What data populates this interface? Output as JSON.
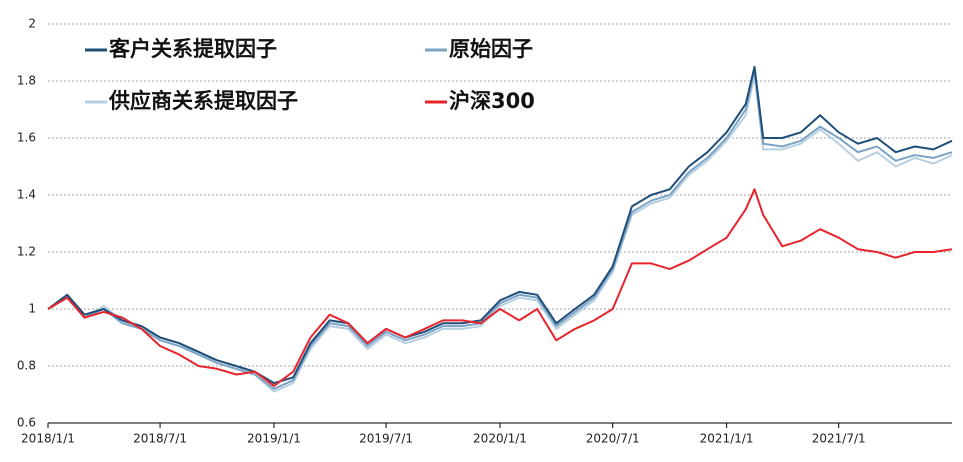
{
  "chart_data": {
    "type": "line",
    "x": [
      "2018/1/1",
      "2018/2/1",
      "2018/3/1",
      "2018/4/1",
      "2018/5/1",
      "2018/6/1",
      "2018/7/1",
      "2018/8/1",
      "2018/9/1",
      "2018/10/1",
      "2018/11/1",
      "2018/12/1",
      "2019/1/1",
      "2019/2/1",
      "2019/3/1",
      "2019/4/1",
      "2019/5/1",
      "2019/6/1",
      "2019/7/1",
      "2019/8/1",
      "2019/9/1",
      "2019/10/1",
      "2019/11/1",
      "2019/12/1",
      "2020/1/1",
      "2020/2/1",
      "2020/3/1",
      "2020/4/1",
      "2020/5/1",
      "2020/6/1",
      "2020/7/1",
      "2020/8/1",
      "2020/9/1",
      "2020/10/1",
      "2020/11/1",
      "2020/12/1",
      "2021/1/1",
      "2021/2/1",
      "2021/2/15",
      "2021/3/1",
      "2021/4/1",
      "2021/5/1",
      "2021/6/1",
      "2021/7/1",
      "2021/8/1",
      "2021/9/1",
      "2021/10/1",
      "2021/11/1",
      "2021/12/1",
      "2021/12/31"
    ],
    "series": [
      {
        "name": "客户关系提取因子",
        "color": "#1f4e79",
        "values": [
          1.0,
          1.05,
          0.98,
          1.0,
          0.96,
          0.94,
          0.9,
          0.88,
          0.85,
          0.82,
          0.8,
          0.78,
          0.74,
          0.76,
          0.88,
          0.96,
          0.95,
          0.88,
          0.93,
          0.9,
          0.92,
          0.95,
          0.95,
          0.96,
          1.03,
          1.06,
          1.05,
          0.95,
          1.0,
          1.05,
          1.15,
          1.36,
          1.4,
          1.42,
          1.5,
          1.55,
          1.62,
          1.72,
          1.85,
          1.6,
          1.6,
          1.62,
          1.68,
          1.62,
          1.58,
          1.6,
          1.55,
          1.57,
          1.56,
          1.59
        ]
      },
      {
        "name": "原始因子",
        "color": "#7ba3c6",
        "values": [
          1.0,
          1.04,
          0.97,
          1.0,
          0.95,
          0.93,
          0.89,
          0.87,
          0.84,
          0.81,
          0.79,
          0.77,
          0.72,
          0.75,
          0.87,
          0.95,
          0.94,
          0.87,
          0.92,
          0.89,
          0.91,
          0.94,
          0.94,
          0.95,
          1.02,
          1.05,
          1.04,
          0.94,
          0.99,
          1.04,
          1.14,
          1.34,
          1.38,
          1.4,
          1.48,
          1.53,
          1.6,
          1.7,
          1.84,
          1.58,
          1.57,
          1.59,
          1.64,
          1.6,
          1.55,
          1.57,
          1.52,
          1.54,
          1.53,
          1.55
        ]
      },
      {
        "name": "供应商关系提取因子",
        "color": "#b8cfe0",
        "values": [
          1.0,
          1.04,
          0.97,
          1.01,
          0.96,
          0.93,
          0.9,
          0.88,
          0.84,
          0.82,
          0.8,
          0.77,
          0.71,
          0.74,
          0.86,
          0.94,
          0.93,
          0.86,
          0.91,
          0.88,
          0.9,
          0.93,
          0.93,
          0.94,
          1.01,
          1.04,
          1.03,
          0.93,
          0.98,
          1.03,
          1.13,
          1.33,
          1.37,
          1.39,
          1.47,
          1.52,
          1.59,
          1.68,
          1.82,
          1.56,
          1.56,
          1.58,
          1.63,
          1.58,
          1.52,
          1.55,
          1.5,
          1.53,
          1.51,
          1.54
        ]
      },
      {
        "name": "沪深300",
        "color": "#e8242c",
        "values": [
          1.0,
          1.04,
          0.97,
          0.99,
          0.97,
          0.93,
          0.87,
          0.84,
          0.8,
          0.79,
          0.77,
          0.78,
          0.73,
          0.78,
          0.9,
          0.98,
          0.95,
          0.88,
          0.93,
          0.9,
          0.93,
          0.96,
          0.96,
          0.95,
          1.0,
          0.96,
          1.0,
          0.89,
          0.93,
          0.96,
          1.0,
          1.16,
          1.16,
          1.14,
          1.17,
          1.21,
          1.25,
          1.35,
          1.42,
          1.33,
          1.22,
          1.24,
          1.28,
          1.25,
          1.21,
          1.2,
          1.18,
          1.2,
          1.2,
          1.21
        ]
      }
    ],
    "xlim": [
      "2018/1/1",
      "2021/12/31"
    ],
    "xticks": [
      "2018/1/1",
      "2018/7/1",
      "2019/1/1",
      "2019/7/1",
      "2020/1/1",
      "2020/7/1",
      "2021/1/1",
      "2021/7/1"
    ],
    "ylim": [
      0.6,
      2
    ],
    "yticks": [
      0.6,
      0.8,
      1,
      1.2,
      1.4,
      1.6,
      1.8,
      2
    ],
    "grid": true
  }
}
